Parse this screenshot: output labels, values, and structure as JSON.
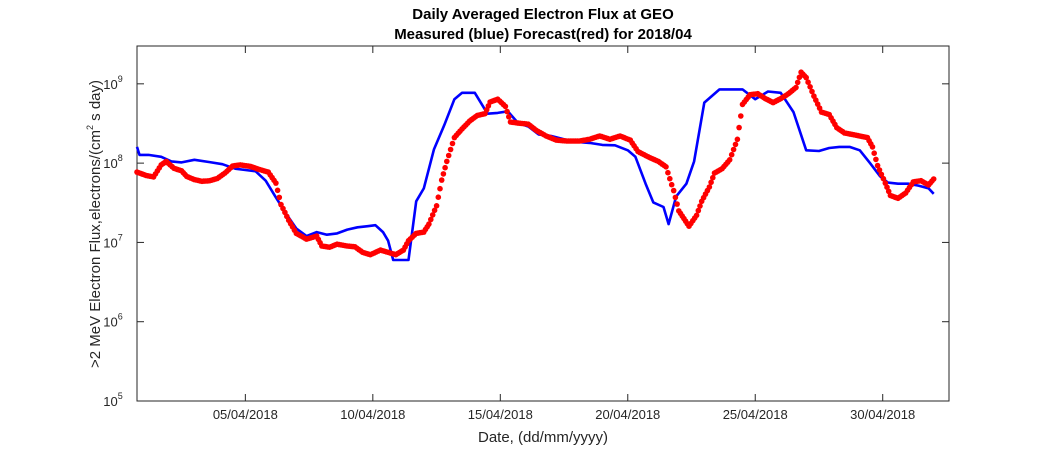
{
  "chart_data": {
    "type": "line",
    "title": "Daily Averaged Electron Flux at GEO",
    "subtitle": "Measured (blue) Forecast(red) for 2018/04",
    "xlabel": "Date, (dd/mm/yyyy)",
    "ylabel": {
      "prefix": ">2 MeV Electron Flux,electrons/(cm",
      "exponent": "2",
      "suffix": " s day)"
    },
    "xlim": [
      0.75,
      32.6
    ],
    "ylim": [
      100000,
      3000000000
    ],
    "yscale": "log",
    "x_ticks": [
      {
        "x": 5,
        "label": "05/04/2018"
      },
      {
        "x": 10,
        "label": "10/04/2018"
      },
      {
        "x": 15,
        "label": "15/04/2018"
      },
      {
        "x": 20,
        "label": "20/04/2018"
      },
      {
        "x": 25,
        "label": "25/04/2018"
      },
      {
        "x": 30,
        "label": "30/04/2018"
      }
    ],
    "y_ticks": [
      {
        "value": 100000,
        "base": "10",
        "exp": "5"
      },
      {
        "value": 1000000,
        "base": "10",
        "exp": "6"
      },
      {
        "value": 10000000,
        "base": "10",
        "exp": "7"
      },
      {
        "value": 100000000,
        "base": "10",
        "exp": "8"
      },
      {
        "value": 1000000000,
        "base": "10",
        "exp": "9"
      }
    ],
    "grid": false,
    "series": [
      {
        "name": "Measured",
        "color": "#0000ff",
        "style": "line",
        "points": [
          [
            0.75,
            160000000.0
          ],
          [
            0.85,
            127000000.0
          ],
          [
            1.2,
            127000000.0
          ],
          [
            1.7,
            120000000.0
          ],
          [
            2.1,
            105000000.0
          ],
          [
            2.5,
            102000000.0
          ],
          [
            3.0,
            110000000.0
          ],
          [
            3.6,
            103000000.0
          ],
          [
            4.1,
            97000000.0
          ],
          [
            4.6,
            85000000.0
          ],
          [
            5.0,
            82000000.0
          ],
          [
            5.4,
            79000000.0
          ],
          [
            5.8,
            60000000.0
          ],
          [
            6.2,
            37000000.0
          ],
          [
            6.6,
            23000000.0
          ],
          [
            7.0,
            15000000.0
          ],
          [
            7.4,
            12000000.0
          ],
          [
            7.8,
            13500000.0
          ],
          [
            8.2,
            12500000.0
          ],
          [
            8.6,
            13000000.0
          ],
          [
            9.0,
            14500000.0
          ],
          [
            9.4,
            15500000.0
          ],
          [
            9.8,
            16000000.0
          ],
          [
            10.1,
            16500000.0
          ],
          [
            10.4,
            13500000.0
          ],
          [
            10.6,
            10500000.0
          ],
          [
            10.8,
            6000000.0
          ],
          [
            11.4,
            6000000.0
          ],
          [
            11.7,
            33000000.0
          ],
          [
            12.0,
            48000000.0
          ],
          [
            12.4,
            150000000.0
          ],
          [
            12.8,
            300000000.0
          ],
          [
            13.2,
            640000000.0
          ],
          [
            13.5,
            770000000.0
          ],
          [
            14.0,
            770000000.0
          ],
          [
            14.5,
            420000000.0
          ],
          [
            14.9,
            430000000.0
          ],
          [
            15.3,
            450000000.0
          ],
          [
            15.7,
            320000000.0
          ],
          [
            16.1,
            290000000.0
          ],
          [
            16.5,
            230000000.0
          ],
          [
            17.0,
            220000000.0
          ],
          [
            17.5,
            200000000.0
          ],
          [
            18.0,
            185000000.0
          ],
          [
            18.5,
            180000000.0
          ],
          [
            19.0,
            170000000.0
          ],
          [
            19.5,
            168000000.0
          ],
          [
            20.0,
            145000000.0
          ],
          [
            20.3,
            120000000.0
          ],
          [
            20.7,
            55000000.0
          ],
          [
            21.0,
            32000000.0
          ],
          [
            21.4,
            28000000.0
          ],
          [
            21.6,
            17000000.0
          ],
          [
            21.9,
            38000000.0
          ],
          [
            22.3,
            55000000.0
          ],
          [
            22.6,
            105000000.0
          ],
          [
            23.0,
            580000000.0
          ],
          [
            23.6,
            850000000.0
          ],
          [
            24.0,
            850000000.0
          ],
          [
            24.5,
            850000000.0
          ],
          [
            25.0,
            640000000.0
          ],
          [
            25.5,
            800000000.0
          ],
          [
            26.0,
            770000000.0
          ],
          [
            26.5,
            440000000.0
          ],
          [
            27.0,
            145000000.0
          ],
          [
            27.5,
            142000000.0
          ],
          [
            27.9,
            155000000.0
          ],
          [
            28.3,
            160000000.0
          ],
          [
            28.7,
            160000000.0
          ],
          [
            29.1,
            145000000.0
          ],
          [
            29.5,
            100000000.0
          ],
          [
            29.9,
            68000000.0
          ],
          [
            30.2,
            57000000.0
          ],
          [
            30.6,
            55000000.0
          ],
          [
            31.0,
            55000000.0
          ],
          [
            31.4,
            52000000.0
          ],
          [
            31.8,
            48000000.0
          ],
          [
            32.0,
            41000000.0
          ]
        ]
      },
      {
        "name": "Forecast",
        "color": "#ff0000",
        "style": "markers",
        "points": [
          [
            0.75,
            77000000.0
          ],
          [
            1.1,
            70000000.0
          ],
          [
            1.4,
            67000000.0
          ],
          [
            1.7,
            95000000.0
          ],
          [
            1.9,
            105000000.0
          ],
          [
            2.2,
            86000000.0
          ],
          [
            2.5,
            80000000.0
          ],
          [
            2.7,
            68000000.0
          ],
          [
            3.0,
            62000000.0
          ],
          [
            3.3,
            59000000.0
          ],
          [
            3.6,
            60000000.0
          ],
          [
            3.9,
            64000000.0
          ],
          [
            4.2,
            75000000.0
          ],
          [
            4.5,
            92000000.0
          ],
          [
            4.8,
            95000000.0
          ],
          [
            5.2,
            91000000.0
          ],
          [
            5.5,
            84000000.0
          ],
          [
            5.9,
            77000000.0
          ],
          [
            6.2,
            56000000.0
          ],
          [
            6.4,
            30000000.0
          ],
          [
            6.7,
            19000000.0
          ],
          [
            7.0,
            13000000.0
          ],
          [
            7.4,
            11000000.0
          ],
          [
            7.8,
            12000000.0
          ],
          [
            8.0,
            9000000.0
          ],
          [
            8.3,
            8700000.0
          ],
          [
            8.6,
            9500000.0
          ],
          [
            9.0,
            9000000.0
          ],
          [
            9.3,
            8800000.0
          ],
          [
            9.6,
            7500000.0
          ],
          [
            9.9,
            7000000.0
          ],
          [
            10.3,
            8000000.0
          ],
          [
            10.6,
            7500000.0
          ],
          [
            10.9,
            7000000.0
          ],
          [
            11.2,
            8000000.0
          ],
          [
            11.4,
            10500000.0
          ],
          [
            11.7,
            13000000.0
          ],
          [
            12.0,
            13500000.0
          ],
          [
            12.2,
            17000000.0
          ],
          [
            12.5,
            29000000.0
          ],
          [
            12.7,
            61000000.0
          ],
          [
            12.9,
            105000000.0
          ],
          [
            13.2,
            210000000.0
          ],
          [
            13.5,
            270000000.0
          ],
          [
            13.8,
            340000000.0
          ],
          [
            14.1,
            400000000.0
          ],
          [
            14.4,
            420000000.0
          ],
          [
            14.6,
            590000000.0
          ],
          [
            14.9,
            640000000.0
          ],
          [
            15.2,
            520000000.0
          ],
          [
            15.4,
            330000000.0
          ],
          [
            15.7,
            320000000.0
          ],
          [
            16.1,
            310000000.0
          ],
          [
            16.4,
            260000000.0
          ],
          [
            16.8,
            220000000.0
          ],
          [
            17.2,
            195000000.0
          ],
          [
            17.6,
            190000000.0
          ],
          [
            18.1,
            190000000.0
          ],
          [
            18.5,
            200000000.0
          ],
          [
            18.9,
            220000000.0
          ],
          [
            19.3,
            200000000.0
          ],
          [
            19.7,
            220000000.0
          ],
          [
            20.1,
            195000000.0
          ],
          [
            20.4,
            140000000.0
          ],
          [
            20.8,
            120000000.0
          ],
          [
            21.2,
            105000000.0
          ],
          [
            21.5,
            90000000.0
          ],
          [
            21.8,
            45000000.0
          ],
          [
            22.0,
            25000000.0
          ],
          [
            22.2,
            20000000.0
          ],
          [
            22.4,
            16000000.0
          ],
          [
            22.7,
            22000000.0
          ],
          [
            22.9,
            33000000.0
          ],
          [
            23.2,
            50000000.0
          ],
          [
            23.4,
            75000000.0
          ],
          [
            23.7,
            85000000.0
          ],
          [
            24.0,
            110000000.0
          ],
          [
            24.3,
            200000000.0
          ],
          [
            24.5,
            550000000.0
          ],
          [
            24.8,
            730000000.0
          ],
          [
            25.1,
            750000000.0
          ],
          [
            25.4,
            650000000.0
          ],
          [
            25.7,
            580000000.0
          ],
          [
            26.0,
            650000000.0
          ],
          [
            26.3,
            750000000.0
          ],
          [
            26.6,
            900000000.0
          ],
          [
            26.8,
            1400000000.0
          ],
          [
            27.0,
            1200000000.0
          ],
          [
            27.3,
            700000000.0
          ],
          [
            27.6,
            440000000.0
          ],
          [
            27.9,
            410000000.0
          ],
          [
            28.2,
            280000000.0
          ],
          [
            28.5,
            240000000.0
          ],
          [
            28.8,
            230000000.0
          ],
          [
            29.1,
            220000000.0
          ],
          [
            29.4,
            210000000.0
          ],
          [
            29.6,
            160000000.0
          ],
          [
            29.8,
            93000000.0
          ],
          [
            30.1,
            56000000.0
          ],
          [
            30.3,
            39000000.0
          ],
          [
            30.6,
            36000000.0
          ],
          [
            30.9,
            42000000.0
          ],
          [
            31.2,
            58000000.0
          ],
          [
            31.5,
            60000000.0
          ],
          [
            31.8,
            53000000.0
          ],
          [
            32.0,
            63000000.0
          ]
        ]
      }
    ]
  }
}
